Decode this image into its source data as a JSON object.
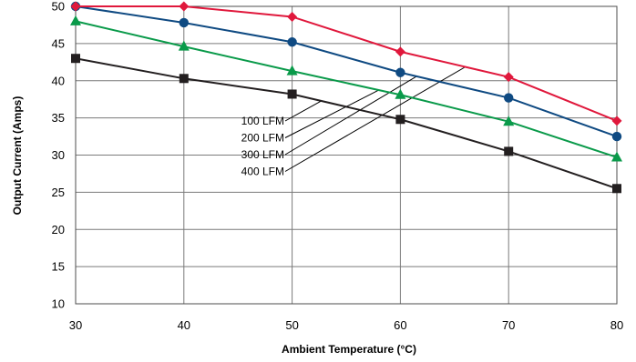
{
  "chart_data": {
    "type": "line",
    "xlabel": "Ambient Temperature (°C)",
    "ylabel": "Output Current (Amps)",
    "xlim": [
      30,
      80
    ],
    "ylim": [
      10,
      50
    ],
    "x_ticks": [
      "30",
      "40",
      "50",
      "60",
      "70",
      "80"
    ],
    "y_ticks": [
      "10",
      "15",
      "20",
      "25",
      "30",
      "35",
      "40",
      "45",
      "50"
    ],
    "grid": true,
    "x": [
      30,
      40,
      50,
      60,
      70,
      80
    ],
    "series": [
      {
        "name": "100 LFM",
        "color": "#231f20",
        "marker": "square",
        "values": [
          43.0,
          40.3,
          38.2,
          34.8,
          30.5,
          25.5
        ]
      },
      {
        "name": "200 LFM",
        "color": "#0a9a4a",
        "marker": "triangle",
        "values": [
          48.0,
          44.6,
          41.3,
          38.1,
          34.5,
          29.7
        ]
      },
      {
        "name": "300 LFM",
        "color": "#0f4a82",
        "marker": "circle",
        "values": [
          50.0,
          47.8,
          45.2,
          41.1,
          37.7,
          32.5
        ]
      },
      {
        "name": "400 LFM",
        "color": "#e0183c",
        "marker": "diamond",
        "values": [
          50.0,
          50.0,
          48.6,
          43.9,
          40.5,
          34.6
        ]
      }
    ],
    "callout_anchors": [
      {
        "series": "100 LFM",
        "x": 52.7
      },
      {
        "series": "200 LFM",
        "x": 58.0
      },
      {
        "series": "300 LFM",
        "x": 61.5
      },
      {
        "series": "400 LFM",
        "x": 66.0
      }
    ]
  }
}
